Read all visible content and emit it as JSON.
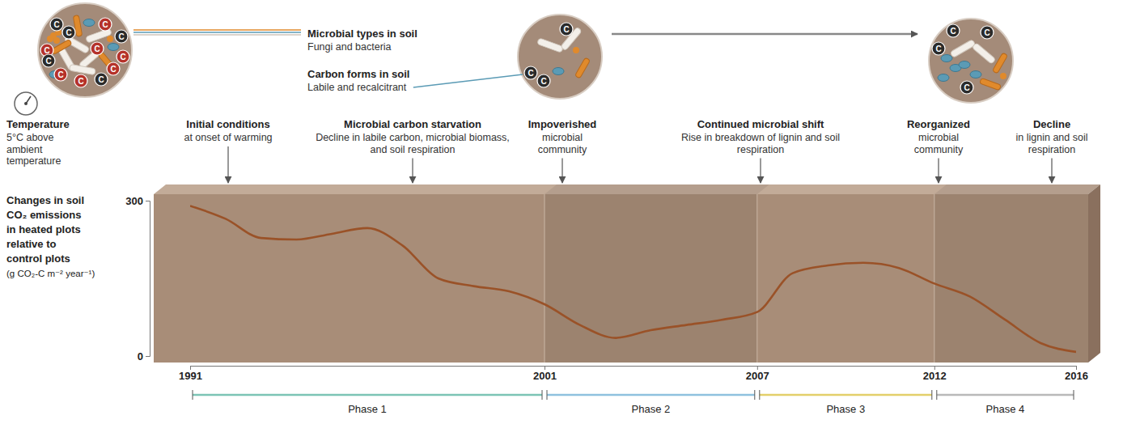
{
  "chart_data": {
    "type": "line",
    "y_label": [
      "Changes in soil",
      "CO₂ emissions",
      "in heated plots",
      "relative to",
      "control plots"
    ],
    "y_unit": "(g CO₂-C m⁻² year⁻¹)",
    "x": [
      1991,
      1992,
      1993,
      1994,
      1995,
      1996,
      1997,
      1998,
      1999,
      2000,
      2001,
      2002,
      2003,
      2004,
      2005,
      2006,
      2007,
      2008,
      2009,
      2010,
      2011,
      2012,
      2013,
      2014,
      2015,
      2016
    ],
    "values": [
      290,
      265,
      228,
      225,
      236,
      247,
      213,
      150,
      135,
      125,
      100,
      60,
      35,
      50,
      60,
      70,
      85,
      160,
      175,
      180,
      170,
      140,
      115,
      70,
      25,
      8
    ],
    "color": "#9a5228",
    "xlim": [
      1991,
      2016
    ],
    "xticks": [
      1991,
      2001,
      2007,
      2012,
      2016
    ],
    "ylim": [
      0,
      300
    ],
    "yticks": [
      0,
      300
    ],
    "grid": false,
    "phases": [
      {
        "label": "Phase 1",
        "start": 1991,
        "end": 2001
      },
      {
        "label": "Phase 2",
        "start": 2001,
        "end": 2007
      },
      {
        "label": "Phase 3",
        "start": 2007,
        "end": 2012
      },
      {
        "label": "Phase 4",
        "start": 2012,
        "end": 2016
      }
    ],
    "annotations": [
      {
        "title": "Temperature",
        "text": "5°C above ambient temperature"
      },
      {
        "title": "Initial conditions",
        "text": "at onset of warming"
      },
      {
        "title": "Microbial carbon starvation",
        "text": "Decline in labile carbon, microbial biomass, and soil respiration"
      },
      {
        "title": "Impoverished",
        "text": "microbial community"
      },
      {
        "title": "Continued microbial shift",
        "text": "Rise in breakdown of lignin and soil respiration"
      },
      {
        "title": "Reorganized",
        "text": "microbial community"
      },
      {
        "title": "Decline",
        "text": "in lignin and soil respiration"
      }
    ],
    "key": [
      {
        "title": "Microbial types in soil",
        "text": "Fungi and bacteria"
      },
      {
        "title": "Carbon forms in soil",
        "text": "Labile and recalcitrant"
      }
    ],
    "carbon_symbol": "C"
  }
}
